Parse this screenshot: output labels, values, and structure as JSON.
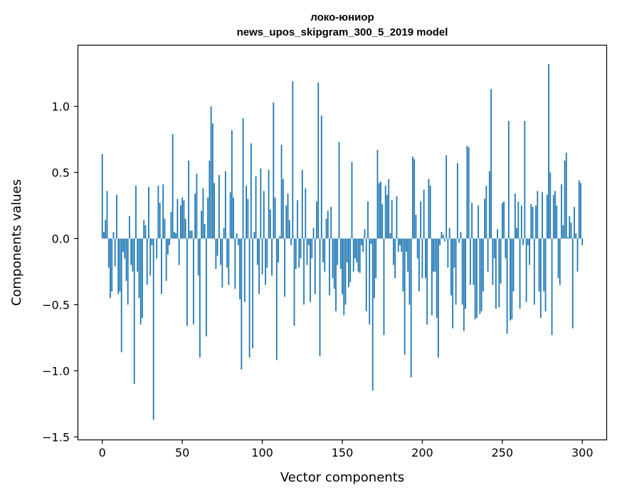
{
  "chart_data": {
    "type": "bar",
    "title": [
      "локо-юниор",
      "news_upos_skipgram_300_5_2019 model"
    ],
    "xlabel": "Vector components",
    "ylabel": "Components values",
    "xlim": [
      -15,
      315
    ],
    "ylim": [
      -1.52,
      1.46
    ],
    "xticks": [
      0,
      50,
      100,
      150,
      200,
      250,
      300
    ],
    "yticks": [
      -1.5,
      -1.0,
      -0.5,
      0.0,
      0.5,
      1.0
    ],
    "ytick_labels": [
      "−1.5",
      "−1.0",
      "−0.5",
      "0.0",
      "0.5",
      "1.0"
    ],
    "xtick_labels": [
      "0",
      "50",
      "100",
      "150",
      "200",
      "250",
      "300"
    ],
    "grid": false,
    "color": "#1f77b4",
    "values": [
      0.64,
      0.05,
      0.14,
      0.36,
      -0.22,
      -0.45,
      -0.4,
      0.05,
      -0.21,
      0.33,
      -0.42,
      -0.4,
      -0.86,
      -0.1,
      -0.15,
      -0.32,
      -0.5,
      0.17,
      -0.2,
      -0.25,
      -1.1,
      0.4,
      -0.25,
      -0.45,
      -0.65,
      -0.6,
      0.14,
      0.1,
      -0.35,
      0.39,
      -0.28,
      -0.05,
      -1.37,
      0.0,
      -0.15,
      0.4,
      0.27,
      -0.42,
      0.41,
      0.15,
      -0.32,
      -0.12,
      -0.05,
      0.2,
      0.79,
      0.05,
      0.04,
      0.3,
      -0.2,
      0.25,
      0.31,
      0.29,
      0.15,
      -0.66,
      0.59,
      0.06,
      0.06,
      -0.65,
      0.34,
      0.49,
      -0.28,
      -0.9,
      0.21,
      0.38,
      0.11,
      -0.74,
      0.31,
      0.59,
      1.0,
      0.87,
      0.42,
      -0.23,
      -0.13,
      0.48,
      -0.2,
      -0.37,
      0.08,
      0.51,
      -0.22,
      -0.35,
      0.35,
      0.82,
      0.31,
      -0.38,
      0.04,
      -0.05,
      -0.46,
      -0.99,
      0.91,
      -0.48,
      0.4,
      0.3,
      -0.9,
      0.72,
      -0.83,
      0.05,
      0.47,
      -0.2,
      -0.42,
      0.53,
      -0.27,
      0.36,
      -0.35,
      -0.22,
      0.52,
      0.22,
      -0.28,
      1.03,
      0.31,
      -0.92,
      -0.18,
      0.02,
      0.71,
      0.45,
      -0.44,
      0.25,
      0.34,
      0.14,
      -0.05,
      1.19,
      -0.66,
      -0.23,
      0.29,
      -0.22,
      -0.15,
      0.52,
      -0.5,
      0.38,
      -0.2,
      -0.05,
      -0.48,
      -0.15,
      0.08,
      -0.42,
      0.28,
      1.18,
      -0.89,
      0.93,
      -0.18,
      -0.25,
      0.15,
      0.21,
      -0.43,
      0.24,
      -0.3,
      -0.38,
      -0.55,
      -0.2,
      0.73,
      -0.23,
      -0.42,
      -0.58,
      -0.5,
      -0.18,
      -0.37,
      -0.33,
      0.58,
      -0.25,
      -0.15,
      -0.18,
      -0.25,
      -0.26,
      -0.05,
      -0.1,
      0.07,
      -0.55,
      0.28,
      -0.65,
      -0.04,
      -1.15,
      -0.45,
      -0.3,
      0.67,
      0.42,
      0.43,
      0.26,
      -0.73,
      0.4,
      0.33,
      0.45,
      0.04,
      0.29,
      -0.2,
      -0.3,
      0.32,
      -0.1,
      -0.05,
      -0.1,
      -0.4,
      -0.88,
      -0.1,
      -0.25,
      -0.5,
      -1.05,
      0.62,
      0.6,
      0.18,
      -0.15,
      -0.4,
      0.28,
      -0.3,
      0.37,
      -0.3,
      -0.65,
      0.45,
      0.4,
      -0.58,
      -0.25,
      -0.25,
      -0.6,
      -0.9,
      -0.05,
      0.05,
      0.03,
      -0.02,
      0.63,
      -0.22,
      0.08,
      -0.43,
      -0.68,
      -0.22,
      -0.5,
      0.57,
      -0.03,
      0.05,
      -0.5,
      -0.7,
      -0.53,
      0.7,
      0.69,
      -0.35,
      0.27,
      -0.35,
      -0.61,
      -0.6,
      0.25,
      -0.57,
      -0.55,
      -0.4,
      0.3,
      0.4,
      -0.25,
      0.51,
      1.13,
      -0.35,
      -0.15,
      -0.53,
      0.07,
      -0.52,
      -0.34,
      0.27,
      0.28,
      -0.15,
      -0.72,
      0.89,
      -0.62,
      -0.61,
      -0.4,
      0.34,
      0.08,
      0.28,
      -0.53,
      0.25,
      -0.05,
      0.89,
      -0.48,
      -0.05,
      -0.2,
      0.26,
      0.24,
      -0.5,
      0.25,
      0.36,
      -0.4,
      -0.6,
      0.35,
      -0.4,
      -0.55,
      0.33,
      1.32,
      0.5,
      -0.73,
      0.33,
      0.36,
      0.25,
      -0.3,
      -0.35,
      0.41,
      0.1,
      0.59,
      0.65,
      0.01,
      0.17,
      0.12,
      -0.68,
      0.24,
      0.04,
      -0.25,
      0.44,
      0.42,
      -0.05
    ]
  }
}
